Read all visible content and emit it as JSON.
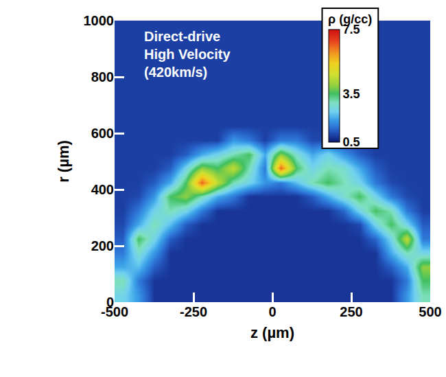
{
  "chart_data": {
    "type": "heatmap",
    "annotations": [
      "Direct-drive",
      "High Velocity",
      "(420km/s)"
    ],
    "xlabel": "z (µm)",
    "ylabel": "r (µm)",
    "x": [
      -475,
      -425,
      -375,
      -325,
      -275,
      -225,
      -175,
      -125,
      -75,
      -25,
      25,
      75,
      125,
      175,
      225,
      275,
      325,
      375,
      425,
      475
    ],
    "y": [
      25,
      75,
      125,
      175,
      225,
      275,
      325,
      375,
      425,
      475,
      525,
      575,
      625,
      675,
      725,
      775,
      825,
      875,
      925,
      975
    ],
    "cells": [
      [
        2.5,
        1.8,
        0.8,
        0.8,
        0.8,
        0.8,
        0.8,
        0.8,
        0.8,
        0.8,
        0.8,
        0.8,
        0.8,
        0.8,
        0.8,
        0.8,
        0.8,
        0.8,
        1.8,
        3.0
      ],
      [
        3.0,
        1.5,
        0.8,
        0.8,
        0.8,
        0.8,
        0.8,
        0.8,
        0.8,
        0.8,
        0.8,
        0.8,
        0.8,
        0.8,
        0.8,
        0.8,
        0.8,
        0.8,
        1.5,
        3.5
      ],
      [
        2.0,
        2.2,
        1.2,
        0.8,
        0.8,
        0.8,
        0.8,
        0.8,
        0.8,
        0.8,
        0.8,
        0.8,
        0.8,
        0.8,
        0.8,
        0.8,
        0.8,
        1.2,
        2.0,
        4.0
      ],
      [
        1.5,
        2.8,
        1.8,
        0.8,
        0.8,
        0.8,
        0.8,
        0.8,
        0.8,
        0.8,
        0.8,
        0.8,
        0.8,
        0.8,
        0.8,
        0.8,
        0.8,
        2.0,
        3.0,
        2.5
      ],
      [
        1.2,
        3.5,
        2.5,
        1.2,
        0.8,
        0.8,
        0.8,
        0.8,
        0.8,
        0.8,
        0.8,
        0.8,
        0.8,
        0.8,
        0.8,
        0.8,
        1.3,
        2.5,
        4.5,
        1.5
      ],
      [
        1.0,
        2.0,
        3.0,
        2.2,
        1.2,
        0.8,
        0.8,
        0.8,
        0.8,
        0.8,
        0.8,
        0.8,
        0.8,
        0.8,
        0.8,
        1.0,
        2.5,
        3.5,
        2.5,
        1.2
      ],
      [
        0.9,
        1.5,
        2.5,
        3.0,
        2.5,
        1.5,
        0.8,
        0.8,
        0.8,
        0.8,
        0.8,
        0.8,
        0.8,
        0.8,
        1.3,
        2.5,
        3.5,
        3.0,
        1.5,
        0.9
      ],
      [
        0.9,
        1.0,
        1.8,
        3.5,
        4.0,
        3.0,
        2.0,
        1.5,
        0.8,
        0.8,
        0.8,
        0.8,
        1.2,
        2.0,
        2.8,
        3.5,
        2.5,
        1.5,
        1.0,
        0.9
      ],
      [
        0.9,
        0.9,
        1.2,
        2.0,
        3.5,
        6.5,
        4.5,
        3.0,
        2.5,
        1.8,
        1.5,
        2.2,
        3.0,
        3.5,
        3.0,
        2.5,
        1.5,
        1.0,
        0.9,
        0.9
      ],
      [
        0.9,
        0.9,
        0.9,
        1.2,
        2.5,
        4.0,
        3.5,
        4.5,
        3.0,
        1.5,
        6.5,
        3.5,
        2.5,
        3.0,
        2.8,
        2.0,
        1.2,
        0.9,
        0.9,
        0.9
      ],
      [
        0.9,
        0.9,
        0.9,
        0.9,
        1.2,
        2.0,
        2.5,
        3.0,
        3.5,
        2.0,
        4.0,
        2.8,
        2.0,
        2.5,
        1.8,
        1.2,
        0.9,
        0.9,
        0.9,
        0.9
      ],
      [
        0.9,
        0.9,
        0.9,
        0.9,
        0.9,
        0.9,
        0.9,
        1.8,
        1.5,
        0.9,
        1.5,
        1.5,
        1.0,
        1.0,
        0.9,
        0.9,
        0.9,
        0.9,
        0.9,
        0.9
      ],
      [
        0.9,
        0.9,
        0.9,
        0.9,
        0.9,
        0.9,
        0.9,
        0.9,
        0.9,
        0.9,
        0.9,
        0.9,
        0.9,
        0.9,
        0.9,
        0.9,
        0.9,
        0.9,
        0.9,
        0.9
      ],
      [
        0.9,
        0.9,
        0.9,
        0.9,
        0.9,
        0.9,
        0.9,
        0.9,
        0.9,
        0.9,
        0.9,
        0.9,
        0.9,
        0.9,
        0.9,
        0.9,
        0.9,
        0.9,
        0.9,
        0.9
      ],
      [
        0.9,
        0.9,
        0.9,
        0.9,
        0.9,
        0.9,
        0.9,
        0.9,
        0.9,
        0.9,
        0.9,
        0.9,
        0.9,
        0.9,
        0.9,
        0.9,
        0.9,
        0.9,
        0.9,
        0.9
      ],
      [
        0.9,
        0.9,
        0.9,
        0.9,
        0.9,
        0.9,
        0.9,
        0.9,
        0.9,
        0.9,
        0.9,
        0.9,
        0.9,
        0.9,
        0.9,
        0.9,
        0.9,
        0.9,
        0.9,
        0.9
      ],
      [
        0.9,
        0.9,
        0.9,
        0.9,
        0.9,
        0.9,
        0.9,
        0.9,
        0.9,
        0.9,
        0.9,
        0.9,
        0.9,
        0.9,
        0.9,
        0.9,
        0.9,
        0.9,
        0.9,
        0.9
      ],
      [
        0.9,
        0.9,
        0.9,
        0.9,
        0.9,
        0.9,
        0.9,
        0.9,
        0.9,
        0.9,
        0.9,
        0.9,
        0.9,
        0.9,
        0.9,
        0.9,
        0.9,
        0.9,
        0.9,
        0.9
      ],
      [
        0.9,
        0.9,
        0.9,
        0.9,
        0.9,
        0.9,
        0.9,
        0.9,
        0.9,
        0.9,
        0.9,
        0.9,
        0.9,
        0.9,
        0.9,
        0.9,
        0.9,
        0.9,
        0.9,
        0.9
      ],
      [
        0.9,
        0.9,
        0.9,
        0.9,
        0.9,
        0.9,
        0.9,
        0.9,
        0.9,
        0.9,
        0.9,
        0.9,
        0.9,
        0.9,
        0.9,
        0.9,
        0.9,
        0.9,
        0.9,
        0.9
      ]
    ],
    "xlim": [
      -500,
      500
    ],
    "xticks": [
      -500,
      -250,
      0,
      250,
      500
    ],
    "ylim": [
      0,
      1000
    ],
    "yticks": [
      0,
      200,
      400,
      600,
      800,
      1000
    ],
    "colorbar": {
      "title": "ρ (g/cc)",
      "range": [
        0.5,
        7.5
      ],
      "ticks": [
        0.5,
        3.5,
        7.5
      ]
    }
  }
}
